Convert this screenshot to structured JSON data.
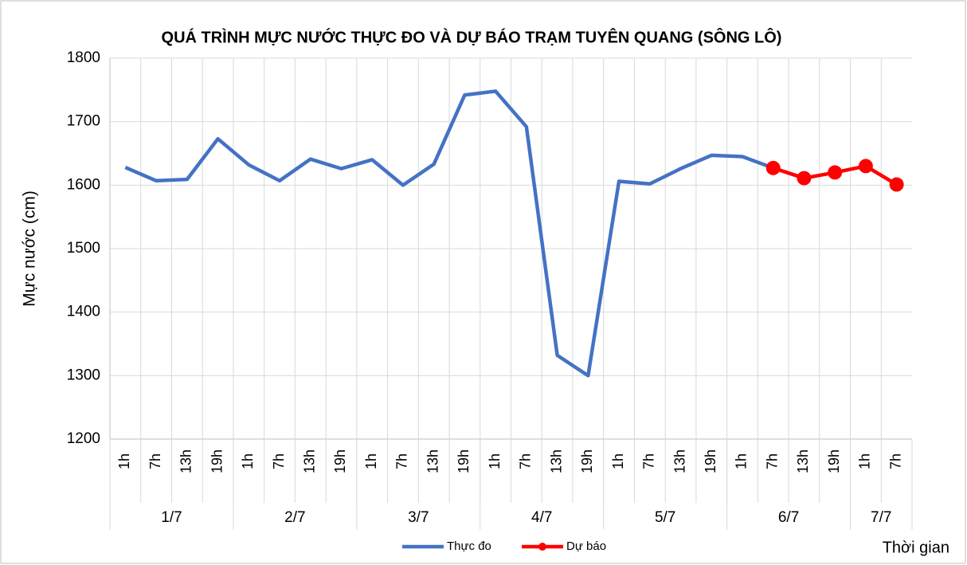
{
  "chart_data": {
    "type": "line",
    "title": "QUÁ TRÌNH MỰC NƯỚC THỰC ĐO VÀ DỰ BÁO TRẠM TUYÊN QUANG (SÔNG LÔ)",
    "y_label": "Mực nước (cm)",
    "x_label": "Thời gian",
    "groups": [
      {
        "label": "1/7",
        "categories": [
          "1h",
          "7h",
          "13h",
          "19h"
        ]
      },
      {
        "label": "2/7",
        "categories": [
          "1h",
          "7h",
          "13h",
          "19h"
        ]
      },
      {
        "label": "3/7",
        "categories": [
          "1h",
          "7h",
          "13h",
          "19h"
        ]
      },
      {
        "label": "4/7",
        "categories": [
          "1h",
          "7h",
          "13h",
          "19h"
        ]
      },
      {
        "label": "5/7",
        "categories": [
          "1h",
          "7h",
          "13h",
          "19h"
        ]
      },
      {
        "label": "6/7",
        "categories": [
          "1h",
          "7h",
          "13h",
          "19h"
        ]
      },
      {
        "label": "7/7",
        "categories": [
          "1h",
          "7h"
        ]
      }
    ],
    "series": [
      {
        "name": "Thực đo",
        "color": "#4472c4",
        "markers": false,
        "values": [
          1628,
          1607,
          1609,
          1673,
          1632,
          1607,
          1641,
          1626,
          1640,
          1600,
          1633,
          1742,
          1748,
          1692,
          1332,
          1300,
          1606,
          1602,
          1626,
          1647,
          1645,
          1627,
          null,
          null,
          null,
          null
        ]
      },
      {
        "name": "Dự báo",
        "color": "#ff0000",
        "markers": true,
        "values": [
          null,
          null,
          null,
          null,
          null,
          null,
          null,
          null,
          null,
          null,
          null,
          null,
          null,
          null,
          null,
          null,
          null,
          null,
          null,
          null,
          null,
          1627,
          1611,
          1620,
          1630,
          1601
        ]
      }
    ],
    "ylim": [
      1200,
      1800
    ],
    "yticks": [
      1200,
      1300,
      1400,
      1500,
      1600,
      1700,
      1800
    ],
    "grid": true,
    "legend": "bottom"
  }
}
